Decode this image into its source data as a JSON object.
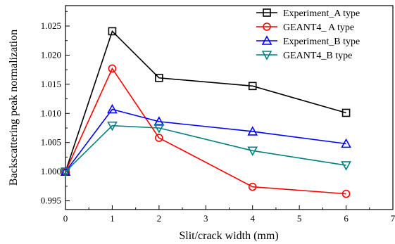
{
  "chart_data": {
    "type": "line",
    "title": "",
    "xlabel": "Slit/crack width (mm)",
    "ylabel": "Backscattering peak normalization",
    "xlim": [
      0,
      7
    ],
    "ylim": [
      0.9935,
      1.0285
    ],
    "x_ticks": [
      0,
      1,
      2,
      3,
      4,
      5,
      6,
      7
    ],
    "x_tick_labels": [
      "0",
      "1",
      "2",
      "3",
      "4",
      "5",
      "6",
      "7"
    ],
    "y_ticks": [
      0.995,
      1.0,
      1.005,
      1.01,
      1.015,
      1.02,
      1.025
    ],
    "y_tick_labels": [
      "0.995",
      "1.000",
      "1.005",
      "1.010",
      "1.015",
      "1.020",
      "1.025"
    ],
    "grid": false,
    "legend_position": "top-right",
    "series": [
      {
        "name": "Experiment_A type",
        "color": "#000000",
        "marker": "square",
        "x": [
          0,
          1,
          2,
          4,
          6
        ],
        "y": [
          1.0,
          1.0241,
          1.0161,
          1.0147,
          1.0101
        ]
      },
      {
        "name": "GEANT4_ A type",
        "color": "#ff0000",
        "marker": "circle",
        "x": [
          0,
          1,
          2,
          4,
          6
        ],
        "y": [
          1.0,
          1.0177,
          1.0058,
          0.9974,
          0.9962
        ]
      },
      {
        "name": "Experiment_B type",
        "color": "#0000ff",
        "marker": "triangle-up",
        "x": [
          0,
          1,
          2,
          4,
          6
        ],
        "y": [
          1.0,
          1.0107,
          1.0086,
          1.0069,
          1.0048
        ]
      },
      {
        "name": "GEANT4_B type",
        "color": "#008080",
        "marker": "triangle-down",
        "x": [
          0,
          1,
          2,
          4,
          6
        ],
        "y": [
          1.0,
          1.0079,
          1.0075,
          1.0036,
          1.0011
        ]
      }
    ]
  }
}
